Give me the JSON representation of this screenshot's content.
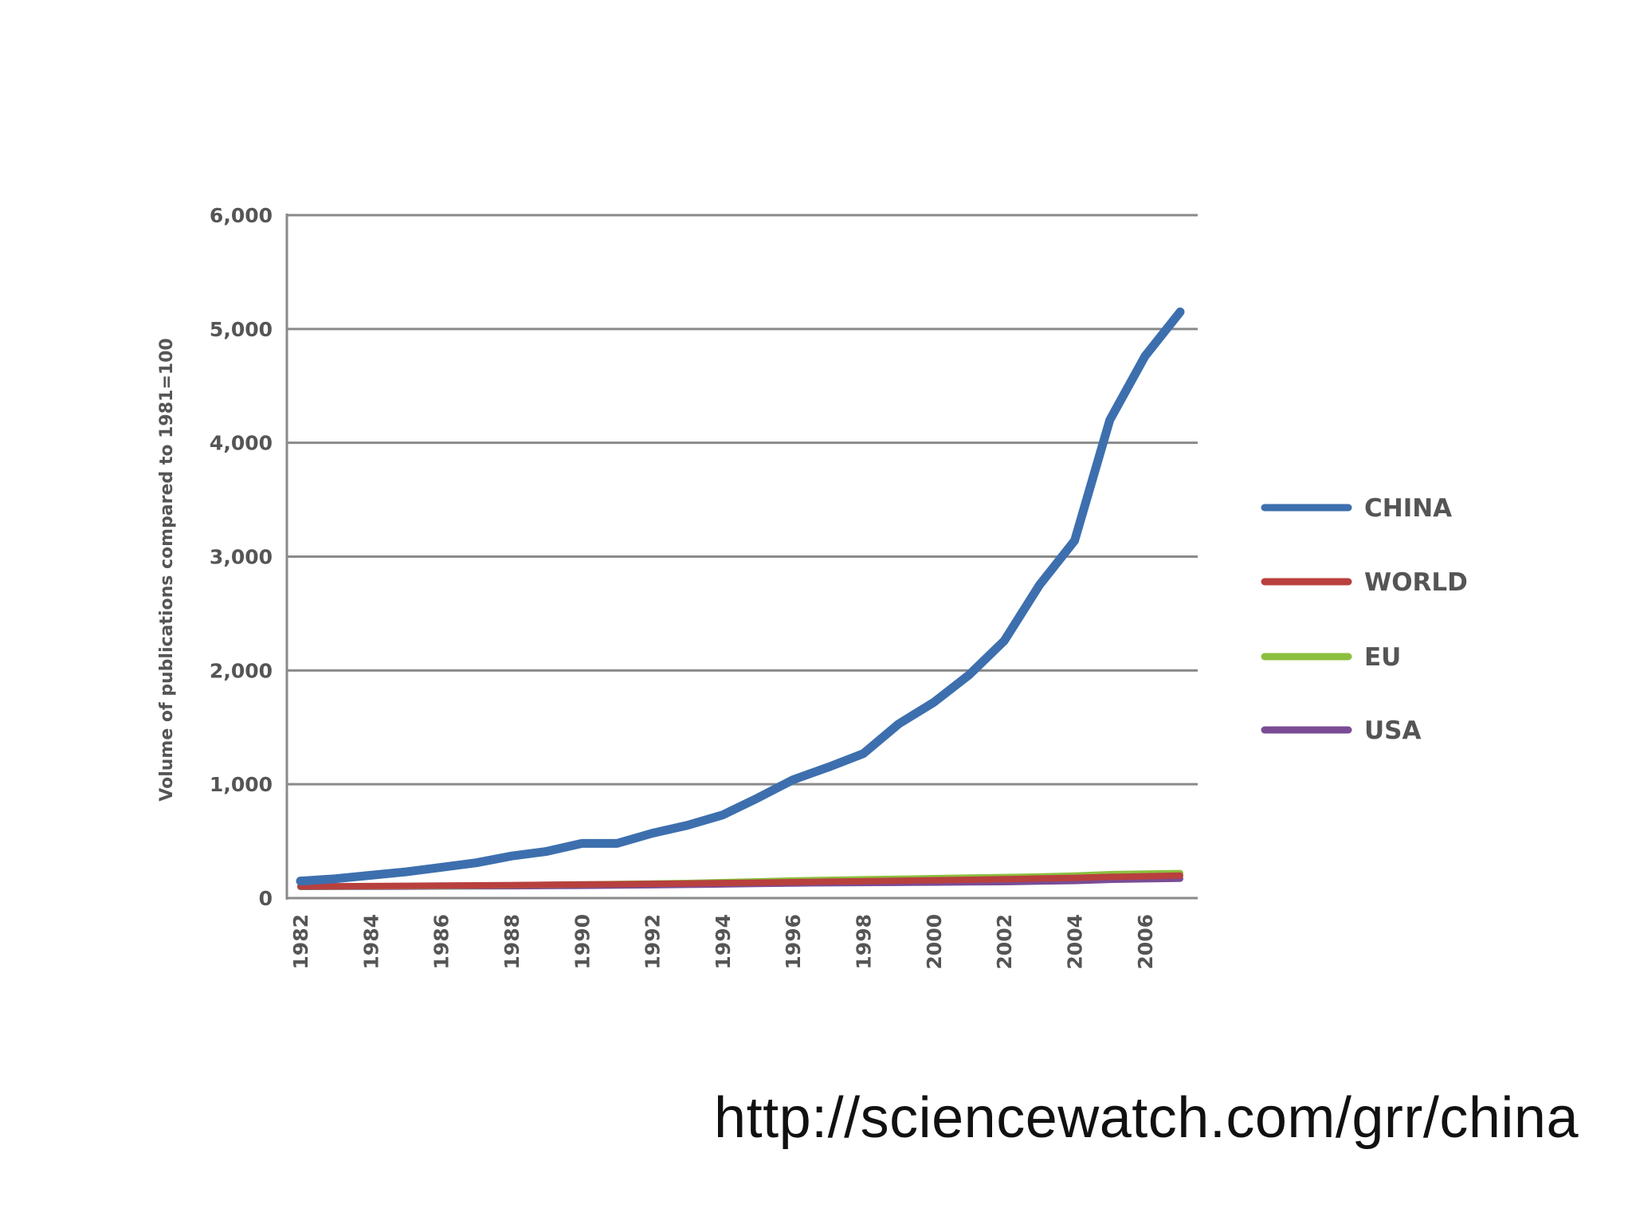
{
  "footer": {
    "source_url": "http://sciencewatch.com/grr/china"
  },
  "chart_data": {
    "type": "line",
    "title": "",
    "xlabel": "",
    "ylabel": "Volume of publications compared to 1981=100",
    "x": [
      1982,
      1983,
      1984,
      1985,
      1986,
      1987,
      1988,
      1989,
      1990,
      1991,
      1992,
      1993,
      1994,
      1995,
      1996,
      1997,
      1998,
      1999,
      2000,
      2001,
      2002,
      2003,
      2004,
      2005,
      2006,
      2007
    ],
    "x_tick_labels": [
      "1982",
      "1984",
      "1986",
      "1988",
      "1990",
      "1992",
      "1994",
      "1996",
      "1998",
      "2000",
      "2002",
      "2004",
      "2006"
    ],
    "y_tick_labels": [
      "0",
      "1,000",
      "2,000",
      "3,000",
      "4,000",
      "5,000",
      "6,000"
    ],
    "y_ticks": [
      0,
      1000,
      2000,
      3000,
      4000,
      5000,
      6000
    ],
    "xlim": [
      1982,
      2007.5
    ],
    "ylim": [
      0,
      6000
    ],
    "grid": "horizontal",
    "legend_position": "right",
    "series": [
      {
        "name": "CHINA",
        "color": "#3d6fae",
        "values": [
          150,
          170,
          200,
          230,
          270,
          310,
          370,
          410,
          480,
          480,
          570,
          640,
          730,
          880,
          1040,
          1150,
          1270,
          1530,
          1720,
          1960,
          2260,
          2750,
          3140,
          4200,
          4760,
          5150
        ]
      },
      {
        "name": "WORLD",
        "color": "#b8403e",
        "values": [
          102,
          104,
          106,
          108,
          110,
          112,
          114,
          117,
          120,
          122,
          125,
          128,
          132,
          136,
          140,
          144,
          148,
          152,
          157,
          161,
          166,
          172,
          178,
          186,
          192,
          198
        ]
      },
      {
        "name": "EU",
        "color": "#8cbf3f",
        "values": [
          100,
          102,
          104,
          106,
          108,
          110,
          113,
          116,
          120,
          124,
          128,
          133,
          140,
          147,
          155,
          160,
          165,
          170,
          175,
          180,
          185,
          190,
          198,
          210,
          215,
          220
        ]
      },
      {
        "name": "USA",
        "color": "#7a4c96",
        "values": [
          98,
          99,
          100,
          101,
          102,
          103,
          104,
          106,
          108,
          110,
          113,
          116,
          120,
          124,
          128,
          130,
          132,
          134,
          136,
          138,
          140,
          145,
          150,
          160,
          165,
          170
        ]
      }
    ]
  }
}
